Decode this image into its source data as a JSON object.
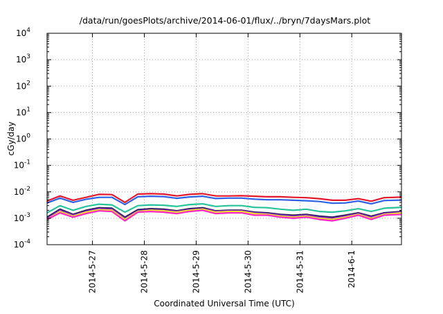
{
  "chart_data": {
    "type": "line",
    "title": "/data/run/goesPlots/archive/2014-06-01/flux/../bryn/7daysMars.plot",
    "xlabel": "Coordinated Universal Time (UTC)",
    "ylabel": "cGy/day",
    "yscale": "log",
    "ylim": [
      0.0001,
      10000
    ],
    "xlim": [
      "2014-05-26T03:00",
      "2014-06-01T23:00"
    ],
    "grid": true,
    "legend": "none",
    "y_ticks": [
      {
        "base": "10",
        "exp": "-4"
      },
      {
        "base": "10",
        "exp": "-3"
      },
      {
        "base": "10",
        "exp": "-2"
      },
      {
        "base": "10",
        "exp": "-1"
      },
      {
        "base": "10",
        "exp": "0"
      },
      {
        "base": "10",
        "exp": "1"
      },
      {
        "base": "10",
        "exp": "2"
      },
      {
        "base": "10",
        "exp": "3"
      },
      {
        "base": "10",
        "exp": "4"
      }
    ],
    "x_ticks": [
      {
        "label": "2014-5-27",
        "date": "2014-05-27"
      },
      {
        "label": "2014-5-28",
        "date": "2014-05-28"
      },
      {
        "label": "2014-5-29",
        "date": "2014-05-29"
      },
      {
        "label": "2014-5-30",
        "date": "2014-05-30"
      },
      {
        "label": "2014-5-31",
        "date": "2014-05-31"
      },
      {
        "label": "2014-6-1",
        "date": "2014-06-01"
      }
    ],
    "x": [
      "2014-05-26T03:00",
      "2014-05-26T09:00",
      "2014-05-26T15:00",
      "2014-05-26T21:00",
      "2014-05-27T03:00",
      "2014-05-27T09:00",
      "2014-05-27T15:00",
      "2014-05-27T21:00",
      "2014-05-28T03:00",
      "2014-05-28T09:00",
      "2014-05-28T15:00",
      "2014-05-28T21:00",
      "2014-05-29T03:00",
      "2014-05-29T09:00",
      "2014-05-29T15:00",
      "2014-05-29T21:00",
      "2014-05-30T03:00",
      "2014-05-30T09:00",
      "2014-05-30T15:00",
      "2014-05-30T21:00",
      "2014-05-31T03:00",
      "2014-05-31T09:00",
      "2014-05-31T15:00",
      "2014-05-31T21:00",
      "2014-06-01T03:00",
      "2014-06-01T09:00",
      "2014-06-01T15:00",
      "2014-06-01T23:00"
    ],
    "series": [
      {
        "color": "#e4172c",
        "values": [
          0.0045,
          0.007,
          0.0048,
          0.0062,
          0.008,
          0.0079,
          0.004,
          0.0082,
          0.0085,
          0.0082,
          0.007,
          0.008,
          0.0085,
          0.007,
          0.007,
          0.0071,
          0.0068,
          0.0065,
          0.0065,
          0.0062,
          0.006,
          0.0055,
          0.0048,
          0.0048,
          0.0055,
          0.0044,
          0.006,
          0.0063
        ]
      },
      {
        "color": "#2f61e6",
        "values": [
          0.0038,
          0.0058,
          0.004,
          0.0052,
          0.0062,
          0.0062,
          0.0033,
          0.0065,
          0.0068,
          0.0066,
          0.0057,
          0.0064,
          0.0068,
          0.0056,
          0.0058,
          0.0058,
          0.0053,
          0.005,
          0.005,
          0.0048,
          0.0046,
          0.0043,
          0.0037,
          0.0038,
          0.0045,
          0.0035,
          0.0047,
          0.0049
        ]
      },
      {
        "color": "#27c39b",
        "values": [
          0.0016,
          0.003,
          0.002,
          0.0028,
          0.0034,
          0.0032,
          0.0017,
          0.003,
          0.0032,
          0.0031,
          0.0028,
          0.0033,
          0.0035,
          0.0028,
          0.003,
          0.003,
          0.0026,
          0.0025,
          0.0022,
          0.002,
          0.0022,
          0.0018,
          0.0017,
          0.0019,
          0.0023,
          0.0018,
          0.0024,
          0.0026
        ]
      },
      {
        "color": "#241a4e",
        "values": [
          0.0011,
          0.0022,
          0.0014,
          0.002,
          0.0025,
          0.0024,
          0.0011,
          0.0021,
          0.0023,
          0.0022,
          0.0019,
          0.0023,
          0.0025,
          0.0019,
          0.002,
          0.002,
          0.0017,
          0.0016,
          0.0014,
          0.0013,
          0.0014,
          0.0012,
          0.0011,
          0.0013,
          0.0016,
          0.0012,
          0.0016,
          0.0018
        ]
      },
      {
        "color": "#8f2ad0",
        "values": [
          0.001,
          0.002,
          0.0013,
          0.0018,
          0.0023,
          0.0022,
          0.001,
          0.0019,
          0.0021,
          0.002,
          0.0018,
          0.0021,
          0.0023,
          0.0018,
          0.0019,
          0.0019,
          0.0016,
          0.0015,
          0.0013,
          0.0012,
          0.0013,
          0.0011,
          0.001,
          0.0012,
          0.0015,
          0.0011,
          0.0015,
          0.0017
        ]
      },
      {
        "color": "#f0df2b",
        "values": [
          0.0009,
          0.0018,
          0.0012,
          0.0017,
          0.0021,
          0.002,
          0.0009,
          0.0018,
          0.002,
          0.0019,
          0.0017,
          0.002,
          0.0022,
          0.0017,
          0.0018,
          0.0018,
          0.0015,
          0.0014,
          0.0012,
          0.0011,
          0.0012,
          0.001,
          0.0009,
          0.0011,
          0.0014,
          0.001,
          0.0014,
          0.0016
        ]
      },
      {
        "color": "#ff28c4",
        "values": [
          0.0009,
          0.0016,
          0.0011,
          0.0015,
          0.0019,
          0.0018,
          0.0008,
          0.0017,
          0.0018,
          0.0017,
          0.0015,
          0.0018,
          0.002,
          0.0015,
          0.0016,
          0.0016,
          0.0013,
          0.0013,
          0.0011,
          0.001,
          0.0011,
          0.0009,
          0.0008,
          0.001,
          0.0013,
          0.0009,
          0.0013,
          0.0014
        ]
      }
    ]
  }
}
